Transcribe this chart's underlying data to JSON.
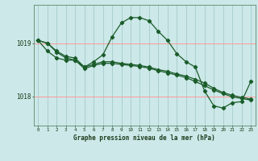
{
  "bg_color": "#cce8e8",
  "grid_color_v": "#aacfcf",
  "grid_color_h": "#ff9999",
  "line_color": "#1a5c2a",
  "title": "Graphe pression niveau de la mer (hPa)",
  "xlabel_ticks": [
    0,
    1,
    2,
    3,
    4,
    5,
    6,
    7,
    8,
    9,
    10,
    11,
    12,
    13,
    14,
    15,
    16,
    17,
    18,
    19,
    20,
    21,
    22,
    23
  ],
  "ytick_labels": [
    "1018",
    "1019"
  ],
  "ytick_vals": [
    1018.0,
    1019.0
  ],
  "ylim": [
    1017.45,
    1019.72
  ],
  "xlim": [
    -0.5,
    23.5
  ],
  "line1_x": [
    0,
    1,
    2,
    3,
    4,
    5,
    6,
    7,
    8,
    9,
    10,
    11,
    12,
    13,
    14,
    15,
    16,
    17,
    18,
    19,
    20,
    21,
    22,
    23
  ],
  "line1_y": [
    1019.05,
    1019.0,
    1018.85,
    1018.75,
    1018.72,
    1018.55,
    1018.65,
    1018.78,
    1019.12,
    1019.38,
    1019.48,
    1019.48,
    1019.42,
    1019.22,
    1019.05,
    1018.8,
    1018.65,
    1018.55,
    1018.1,
    1017.82,
    1017.78,
    1017.88,
    1017.9,
    1018.28
  ],
  "line2_x": [
    0,
    1,
    2,
    3,
    4,
    5,
    6,
    7,
    8,
    9,
    10,
    11,
    12,
    13,
    14,
    15,
    16,
    17,
    18,
    19,
    20,
    21,
    22,
    23
  ],
  "line2_y": [
    1019.05,
    1018.85,
    1018.72,
    1018.68,
    1018.68,
    1018.55,
    1018.6,
    1018.65,
    1018.65,
    1018.62,
    1018.6,
    1018.58,
    1018.55,
    1018.5,
    1018.47,
    1018.42,
    1018.38,
    1018.32,
    1018.25,
    1018.15,
    1018.07,
    1018.02,
    1017.98,
    1017.95
  ],
  "line3_x": [
    0,
    1,
    2,
    3,
    4,
    5,
    6,
    7,
    8,
    9,
    10,
    11,
    12,
    13,
    14,
    15,
    16,
    17,
    18,
    19,
    20,
    21,
    22,
    23
  ],
  "line3_y": [
    1019.05,
    1019.0,
    1018.83,
    1018.72,
    1018.68,
    1018.52,
    1018.58,
    1018.62,
    1018.62,
    1018.6,
    1018.58,
    1018.56,
    1018.53,
    1018.48,
    1018.44,
    1018.4,
    1018.35,
    1018.28,
    1018.2,
    1018.12,
    1018.05,
    1017.99,
    1017.96,
    1017.93
  ]
}
